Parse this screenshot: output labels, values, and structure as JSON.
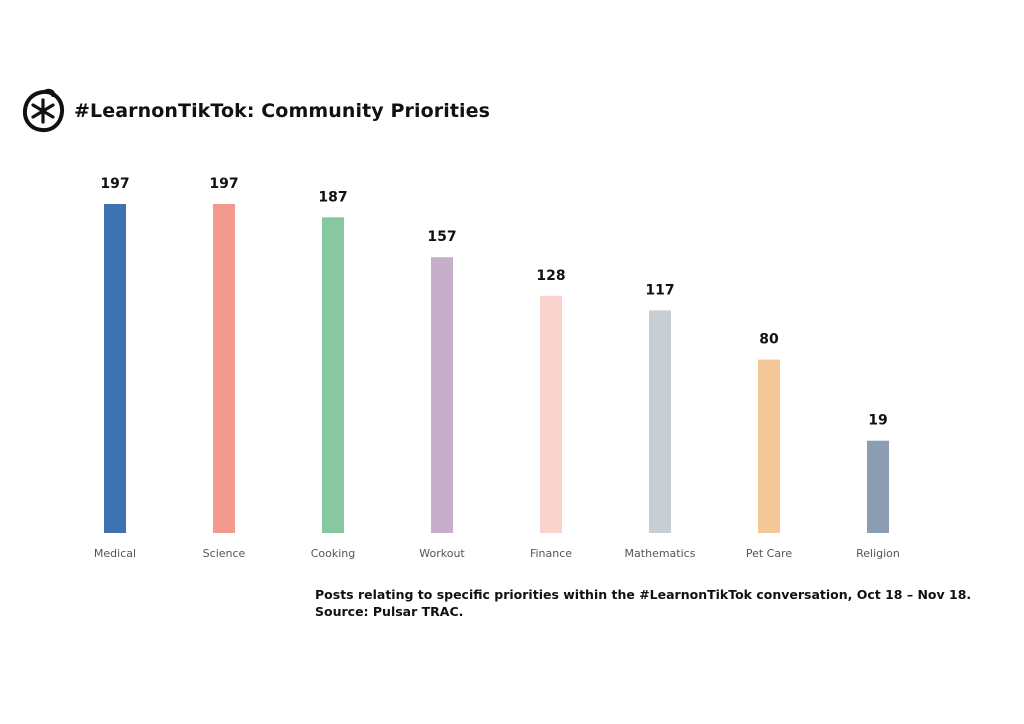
{
  "header": {
    "logo_icon": "pulsar-asterisk-logo-icon",
    "title": "#LearnonTikTok: Community Priorities"
  },
  "caption": {
    "line1": "Posts relating to specific priorities within the #LearnonTikTok conversation, Oct 18 – Nov 18.",
    "line2": "Source: Pulsar TRAC."
  },
  "chart_data": {
    "type": "bar",
    "title": "#LearnonTikTok: Community Priorities",
    "xlabel": "",
    "ylabel": "",
    "categories": [
      "Medical",
      "Science",
      "Cooking",
      "Workout",
      "Finance",
      "Mathematics",
      "Pet Care",
      "Religion"
    ],
    "values": [
      197,
      197,
      187,
      157,
      128,
      117,
      80,
      19
    ],
    "colors": [
      "#3f72b0",
      "#f4998d",
      "#88c8a0",
      "#c6afc8",
      "#f9d3ce",
      "#c8cfd3",
      "#f3c797",
      "#8a9db2"
    ],
    "grid": false,
    "legend": "none",
    "data_labels": true
  }
}
